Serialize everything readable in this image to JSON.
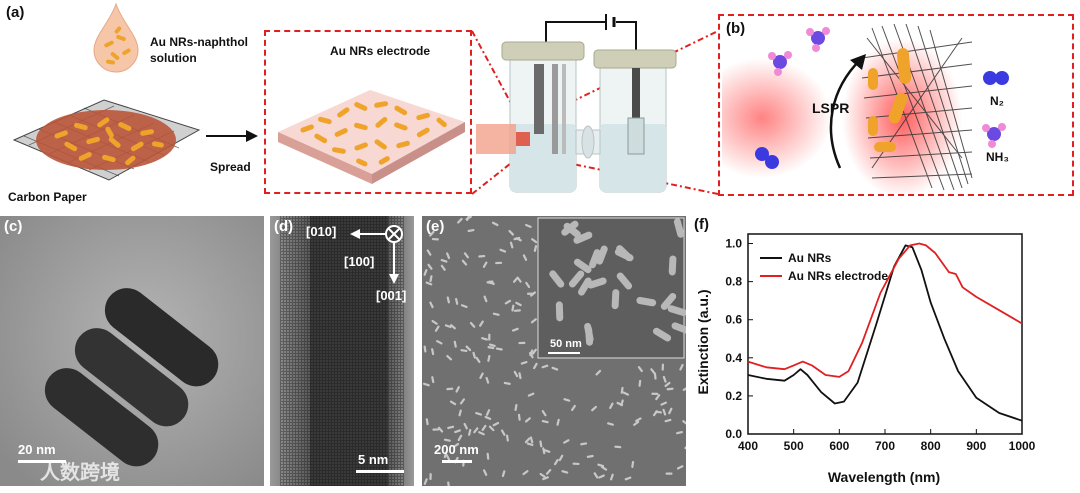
{
  "panel_a": {
    "label": "(a)",
    "solution_label": "Au NRs-naphthol solution",
    "substrate_label": "Carbon Paper",
    "arrow_label": "Spread",
    "electrode_label": "Au NRs electrode"
  },
  "panel_b": {
    "label": "(b)",
    "mechanism_label": "LSPR",
    "n2_label": "N₂",
    "nh3_label": "NH₃"
  },
  "panel_c": {
    "label": "(c)",
    "scale_bar": "20 nm"
  },
  "panel_d": {
    "label": "(d)",
    "dir_010": "[010]",
    "dir_100": "[100]",
    "dir_001": "[001]",
    "scale_bar": "5 nm"
  },
  "panel_e": {
    "label": "(e)",
    "scale_bar": "200 nm",
    "inset_scale_bar": "50 nm"
  },
  "watermark": "人数跨境",
  "colors": {
    "gold": "#f0a32a",
    "red_dash": "#e02020",
    "nh3_pink": "#e878d8",
    "n2_blue": "#3a3ae0",
    "au_nrs_line": "#111111",
    "electrode_line": "#e02020"
  },
  "chart_data": {
    "label": "(f)",
    "type": "line",
    "xlabel": "Wavelength (nm)",
    "ylabel": "Extinction (a.u.)",
    "xlim": [
      400,
      1000
    ],
    "ylim": [
      0,
      1.05
    ],
    "xticks": [
      400,
      500,
      600,
      700,
      800,
      900,
      1000
    ],
    "yticks": [
      0.0,
      0.2,
      0.4,
      0.6,
      0.8,
      1.0
    ],
    "legend_position": "top-left",
    "series": [
      {
        "name": "Au NRs",
        "color": "#111111",
        "x": [
          400,
          440,
          480,
          500,
          515,
          530,
          560,
          590,
          610,
          640,
          680,
          720,
          745,
          760,
          780,
          800,
          830,
          860,
          900,
          950,
          1000
        ],
        "y": [
          0.31,
          0.29,
          0.28,
          0.31,
          0.34,
          0.31,
          0.22,
          0.16,
          0.17,
          0.27,
          0.57,
          0.88,
          0.99,
          0.98,
          0.86,
          0.69,
          0.5,
          0.33,
          0.19,
          0.11,
          0.07
        ]
      },
      {
        "name": "Au NRs electrode",
        "color": "#e02020",
        "x": [
          400,
          440,
          480,
          500,
          520,
          540,
          570,
          600,
          620,
          650,
          690,
          730,
          755,
          775,
          790,
          810,
          840,
          855,
          870,
          900,
          950,
          1000
        ],
        "y": [
          0.38,
          0.35,
          0.34,
          0.36,
          0.38,
          0.36,
          0.31,
          0.3,
          0.33,
          0.48,
          0.74,
          0.92,
          0.99,
          1.0,
          0.99,
          0.95,
          0.85,
          0.84,
          0.77,
          0.72,
          0.65,
          0.58
        ]
      }
    ]
  }
}
